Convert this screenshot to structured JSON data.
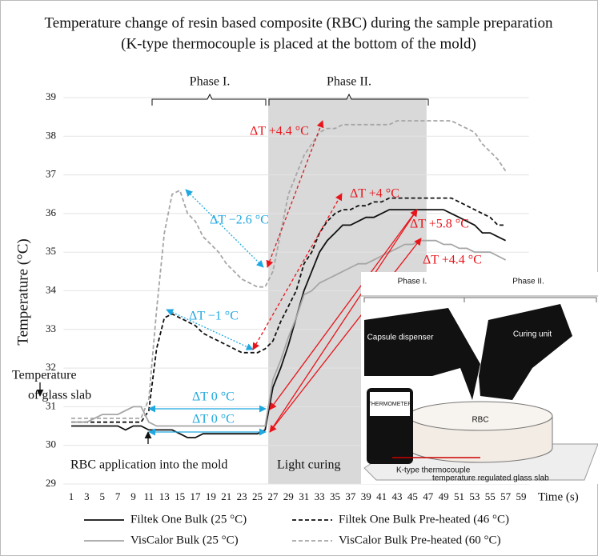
{
  "chart_data": {
    "type": "line",
    "title": [
      "Temperature change of resin based composite (RBC) during the sample preparation",
      "(K-type thermocouple is placed at the bottom of the mold)"
    ],
    "y_label": "Temperature (°C)",
    "x_label": "Time (s)",
    "x": [
      1,
      2,
      3,
      4,
      5,
      6,
      7,
      8,
      9,
      10,
      11,
      12,
      13,
      14,
      15,
      16,
      17,
      18,
      19,
      20,
      21,
      22,
      23,
      24,
      25,
      26,
      27,
      28,
      29,
      30,
      31,
      32,
      33,
      34,
      35,
      36,
      37,
      38,
      39,
      40,
      41,
      42,
      43,
      44,
      45,
      46,
      47,
      48,
      49,
      50,
      51,
      52,
      53,
      54,
      55,
      56,
      57
    ],
    "xlim": [
      0,
      60
    ],
    "xticks": [
      1,
      3,
      5,
      7,
      9,
      11,
      13,
      15,
      17,
      19,
      21,
      23,
      25,
      27,
      29,
      31,
      33,
      35,
      37,
      39,
      41,
      43,
      45,
      47,
      49,
      51,
      53,
      55,
      57,
      59
    ],
    "ylim": [
      29,
      39
    ],
    "yticks": [
      29,
      30,
      31,
      32,
      33,
      34,
      35,
      36,
      37,
      38,
      39
    ],
    "grid": true,
    "series": [
      {
        "name": "Filtek One Bulk (25 °C)",
        "color": "#111111",
        "dash": "solid",
        "values": [
          30.5,
          30.5,
          30.5,
          30.5,
          30.5,
          30.5,
          30.5,
          30.4,
          30.5,
          30.5,
          30.4,
          30.4,
          30.4,
          30.4,
          30.3,
          30.2,
          30.2,
          30.3,
          30.3,
          30.3,
          30.3,
          30.3,
          30.3,
          30.3,
          30.3,
          30.4,
          31.5,
          32,
          32.6,
          33.3,
          34,
          34.5,
          35,
          35.3,
          35.5,
          35.7,
          35.7,
          35.8,
          35.9,
          35.9,
          36,
          36.1,
          36.1,
          36.1,
          36.1,
          36.1,
          36.1,
          36.1,
          36.1,
          36,
          35.9,
          35.8,
          35.7,
          35.5,
          35.5,
          35.4,
          35.3
        ]
      },
      {
        "name": "Filtek One Bulk Pre-heated (46 °C)",
        "color": "#111111",
        "dash": "dashed",
        "values": [
          30.6,
          30.6,
          30.6,
          30.6,
          30.6,
          30.6,
          30.6,
          30.6,
          30.6,
          30.6,
          30.9,
          32.5,
          33.3,
          33.4,
          33.3,
          33.2,
          33.1,
          32.9,
          32.8,
          32.7,
          32.6,
          32.5,
          32.4,
          32.4,
          32.4,
          32.5,
          32.7,
          33.2,
          33.6,
          34,
          34.7,
          35,
          35.5,
          35.8,
          36,
          36.1,
          36.1,
          36.2,
          36.2,
          36.3,
          36.3,
          36.4,
          36.4,
          36.4,
          36.4,
          36.4,
          36.4,
          36.4,
          36.4,
          36.4,
          36.3,
          36.2,
          36.1,
          36,
          35.9,
          35.7,
          35.7
        ]
      },
      {
        "name": "VisCalor Bulk (25 °C)",
        "color": "#a6a6a6",
        "dash": "solid",
        "values": [
          30.6,
          30.6,
          30.6,
          30.7,
          30.8,
          30.8,
          30.8,
          30.9,
          31,
          31,
          30.6,
          30.5,
          30.5,
          30.5,
          30.5,
          30.5,
          30.5,
          30.5,
          30.5,
          30.5,
          30.5,
          30.5,
          30.5,
          30.5,
          30.5,
          30.5,
          31.7,
          32.2,
          32.8,
          33.3,
          33.9,
          34,
          34.2,
          34.3,
          34.4,
          34.5,
          34.6,
          34.7,
          34.7,
          34.8,
          34.9,
          35,
          35.1,
          35.2,
          35.2,
          35.3,
          35.3,
          35.3,
          35.2,
          35.2,
          35.1,
          35.1,
          35,
          35,
          35,
          34.9,
          34.8
        ]
      },
      {
        "name": "VisCalor Bulk Pre-heated (60 °C)",
        "color": "#a6a6a6",
        "dash": "dashed",
        "values": [
          30.7,
          30.7,
          30.7,
          30.7,
          30.7,
          30.7,
          30.7,
          30.7,
          30.7,
          30.7,
          31.2,
          33.5,
          35.5,
          36.5,
          36.6,
          36,
          35.8,
          35.4,
          35.2,
          35,
          34.7,
          34.5,
          34.3,
          34.2,
          34.1,
          34.1,
          34.5,
          35.5,
          36.5,
          37,
          37.5,
          37.8,
          38.1,
          38.2,
          38.2,
          38.3,
          38.3,
          38.3,
          38.3,
          38.3,
          38.3,
          38.3,
          38.4,
          38.4,
          38.4,
          38.4,
          38.4,
          38.4,
          38.4,
          38.4,
          38.3,
          38.2,
          38.1,
          37.8,
          37.6,
          37.4,
          37.1
        ]
      }
    ],
    "shaded_region": {
      "x": [
        26.4,
        46.8
      ],
      "color": "#d9d9d9",
      "label": "Light curing"
    },
    "annotations": [
      {
        "text": "Phase I.",
        "color": "#111111"
      },
      {
        "text": "Phase II.",
        "color": "#111111"
      },
      {
        "text": "ΔT +4.4 °C",
        "color": "#e8141a"
      },
      {
        "text": "ΔT −2.6 °C",
        "color": "#1fa8e0"
      },
      {
        "text": "ΔT +4 °C",
        "color": "#e8141a"
      },
      {
        "text": "ΔT +5.8 °C",
        "color": "#e8141a"
      },
      {
        "text": "ΔT +4.4 °C",
        "color": "#e8141a"
      },
      {
        "text": "ΔT −1 °C",
        "color": "#1fa8e0"
      },
      {
        "text": "ΔT 0 °C",
        "color": "#1fa8e0"
      },
      {
        "text": "ΔT 0 °C",
        "color": "#1fa8e0"
      },
      {
        "text": "Temperature",
        "color": "#111111"
      },
      {
        "text": "of glass slab",
        "color": "#111111"
      },
      {
        "text": "RBC application into the mold",
        "color": "#111111"
      }
    ],
    "inset": {
      "labels": [
        "Phase I.",
        "Phase II.",
        "Capsule dispenser",
        "Curing unit",
        "THERMOMETER",
        "RBC",
        "K-type thermocouple",
        "temperature  regulated glass slab"
      ]
    }
  }
}
